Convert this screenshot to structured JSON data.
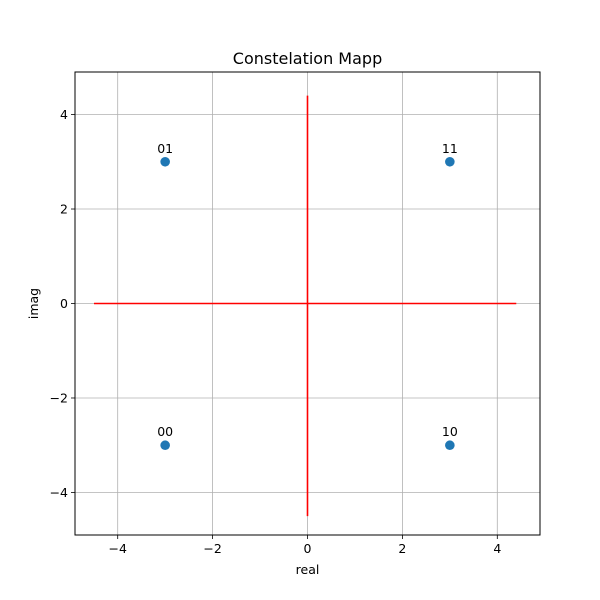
{
  "chart_data": {
    "type": "scatter",
    "title": "Constelation Mapp",
    "xlabel": "real",
    "ylabel": "imag",
    "xlim": [
      -4.9,
      4.9
    ],
    "ylim": [
      -4.9,
      4.9
    ],
    "grid": true,
    "x_ticks": [
      -4,
      -2,
      0,
      2,
      4
    ],
    "y_ticks": [
      -4,
      -2,
      0,
      2,
      4
    ],
    "x_tick_labels": [
      "−4",
      "−2",
      "0",
      "2",
      "4"
    ],
    "y_tick_labels": [
      "−4",
      "−2",
      "0",
      "2",
      "4"
    ],
    "points": [
      {
        "x": -3,
        "y": 3,
        "label": "01"
      },
      {
        "x": 3,
        "y": 3,
        "label": "11"
      },
      {
        "x": -3,
        "y": -3,
        "label": "00"
      },
      {
        "x": 3,
        "y": -3,
        "label": "10"
      }
    ],
    "lines": [
      {
        "x": [
          -4.5,
          4.4
        ],
        "y": [
          0,
          0
        ]
      },
      {
        "x": [
          0,
          0
        ],
        "y": [
          -4.5,
          4.4
        ]
      }
    ],
    "point_color": "#1f77b4",
    "line_color": "#ff0000",
    "grid_color": "#b0b0b0"
  }
}
